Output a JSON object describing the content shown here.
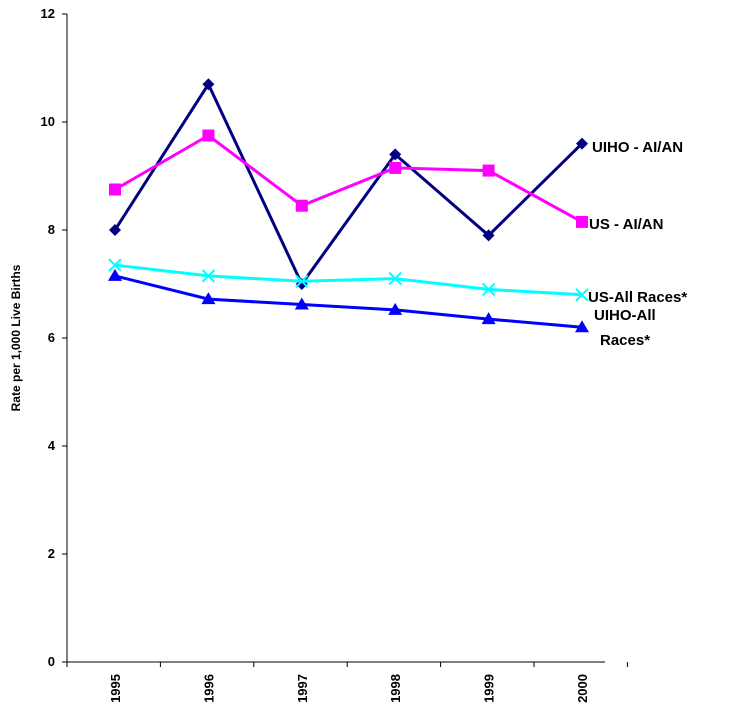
{
  "chart_data": {
    "type": "line",
    "title": "",
    "xlabel": "",
    "ylabel": "Rate per 1,000 Live Births",
    "x": [
      "1995",
      "1996",
      "1997",
      "1998",
      "1999",
      "2000"
    ],
    "ylim": [
      0,
      12
    ],
    "yticks": [
      "0",
      "2",
      "4",
      "6",
      "8",
      "10",
      "12"
    ],
    "grid": false,
    "legend": "none",
    "series": [
      {
        "name": "UIHO - AI/AN",
        "values": [
          8.0,
          10.7,
          7.0,
          9.4,
          7.9,
          9.6
        ],
        "color": "#000080",
        "marker": "diamond"
      },
      {
        "name": "US - AI/AN",
        "values": [
          8.75,
          9.75,
          8.45,
          9.15,
          9.1,
          8.15
        ],
        "color": "#FF00FF",
        "marker": "square"
      },
      {
        "name": "US-All Races*",
        "values": [
          7.35,
          7.15,
          7.05,
          7.1,
          6.9,
          6.8
        ],
        "color": "#00FFFF",
        "marker": "x"
      },
      {
        "name": "UIHO-All Races*",
        "values": [
          7.15,
          6.72,
          6.62,
          6.52,
          6.35,
          6.2
        ],
        "color": "#0000FF",
        "marker": "triangle"
      }
    ],
    "series_labels": {
      "uiho_aian": "UIHO - AI/AN",
      "us_aian": "US - AI/AN",
      "us_all": "US-All Races*",
      "uiho_all_line1": "UIHO-All",
      "uiho_all_line2": "Races*"
    }
  }
}
